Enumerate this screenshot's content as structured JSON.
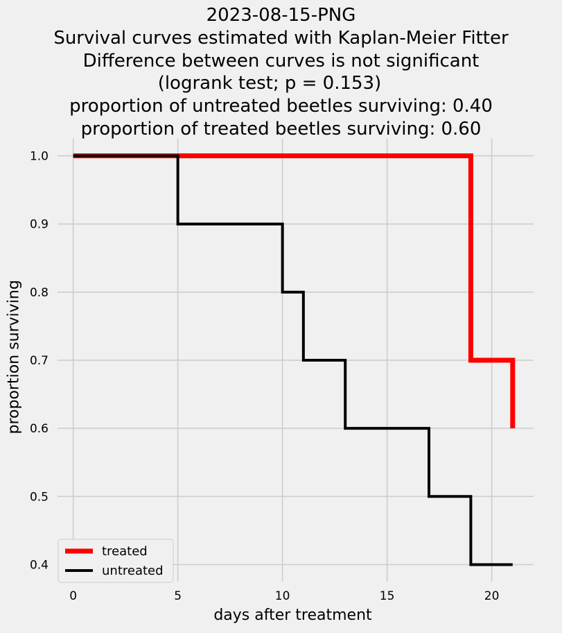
{
  "chart_data": {
    "type": "line",
    "title_lines": [
      "2023-08-15-PNG",
      "Survival curves estimated with Kaplan-Meier Fitter",
      "Difference between curves is not significant",
      "(logrank test; p = 0.153)    ",
      "proportion of untreated beetles surviving: 0.40",
      "proportion of treated beetles surviving: 0.60"
    ],
    "xlabel": "days after treatment",
    "ylabel": "proportion surviving",
    "xlim": [
      -0.75,
      22
    ],
    "ylim": [
      0.375,
      1.025
    ],
    "xticks": [
      0,
      5,
      10,
      15,
      20
    ],
    "yticks": [
      0.4,
      0.5,
      0.6,
      0.7,
      0.8,
      0.9,
      1.0
    ],
    "ytick_labels": [
      "0.4",
      "0.5",
      "0.6",
      "0.7",
      "0.8",
      "0.9",
      "1.0"
    ],
    "grid": true,
    "legend_position": "lower-left",
    "series": [
      {
        "name": "treated",
        "color": "#ff0000",
        "step": "post",
        "x": [
          0,
          19,
          21
        ],
        "y": [
          1.0,
          0.7,
          0.6
        ]
      },
      {
        "name": "untreated",
        "color": "#000000",
        "step": "post",
        "x": [
          0,
          5,
          10,
          11,
          13,
          17,
          19,
          21
        ],
        "y": [
          1.0,
          0.9,
          0.8,
          0.7,
          0.6,
          0.5,
          0.4,
          0.4
        ]
      }
    ]
  }
}
